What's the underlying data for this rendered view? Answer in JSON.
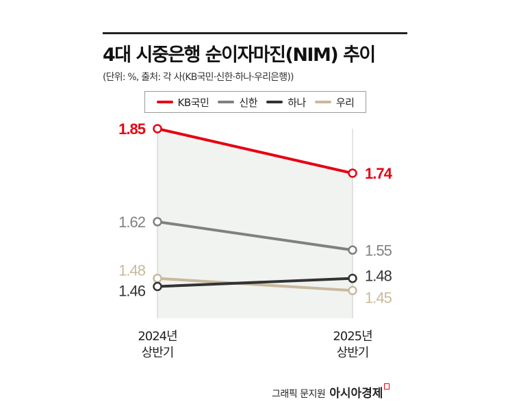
{
  "title": "4대 시중은행 순이자마진(NIM) 추이",
  "subtitle": "(단위: %, 출처: 각 사(KB국민·신한·하나·우리은행))",
  "credit": {
    "text": "그래픽 문지원",
    "brand": "아시아경제"
  },
  "chart_data": {
    "type": "line",
    "categories": [
      "2024년\n상반기",
      "2025년\n상반기"
    ],
    "category_lines": [
      [
        "2024년",
        "상반기"
      ],
      [
        "2025년",
        "상반기"
      ]
    ],
    "legend_position": "top",
    "series": [
      {
        "name": "KB국민",
        "values": [
          1.85,
          1.74
        ],
        "color": "#e60012"
      },
      {
        "name": "신한",
        "values": [
          1.62,
          1.55
        ],
        "color": "#808080"
      },
      {
        "name": "하나",
        "values": [
          1.46,
          1.48
        ],
        "color": "#333333"
      },
      {
        "name": "우리",
        "values": [
          1.48,
          1.45
        ],
        "color": "#c9b99b"
      }
    ],
    "value_labels": [
      [
        "1.85",
        "1.74"
      ],
      [
        "1.62",
        "1.55"
      ],
      [
        "1.46",
        "1.48"
      ],
      [
        "1.48",
        "1.45"
      ]
    ],
    "grid": false
  }
}
